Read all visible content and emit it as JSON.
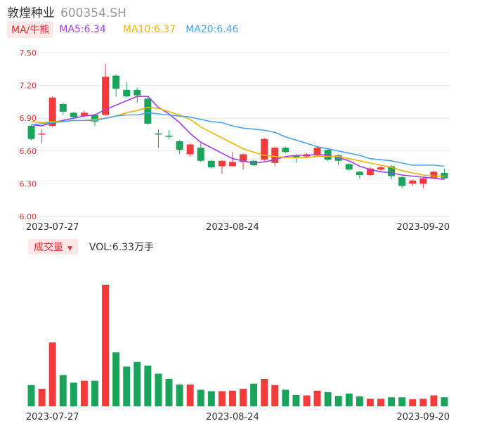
{
  "header": {
    "name": "敦煌种业",
    "code": "600354.SH"
  },
  "ma": {
    "label": "MA/牛熊",
    "ma5": "MA5:6.34",
    "ma10": "MA10:6.37",
    "ma20": "MA20:6.46"
  },
  "vol": {
    "label": "成交量",
    "arrow": "▼",
    "value": "VOL:6.33万手"
  },
  "colors": {
    "up": "#f23b3b",
    "down": "#1aa35a",
    "ma5": "#a23fe6",
    "ma10": "#f0b400",
    "ma20": "#4da3f0",
    "grid": "#e8e8e8"
  },
  "chart_data": [
    {
      "type": "candlestick",
      "ylim": [
        6.0,
        7.5
      ],
      "yticks": [
        "7.50",
        "7.20",
        "6.90",
        "6.60",
        "6.30",
        "6.00"
      ],
      "xticks": [
        "2023-07-27",
        "2023-08-24",
        "2023-09-20"
      ],
      "xtick_index": [
        2,
        19,
        37
      ],
      "candles": [
        {
          "o": 6.83,
          "c": 6.71,
          "h": 6.84,
          "l": 6.7
        },
        {
          "o": 6.75,
          "c": 6.76,
          "h": 6.8,
          "l": 6.67
        },
        {
          "o": 6.83,
          "c": 7.09,
          "h": 7.1,
          "l": 6.82
        },
        {
          "o": 7.03,
          "c": 6.96,
          "h": 7.04,
          "l": 6.93
        },
        {
          "o": 6.95,
          "c": 6.91,
          "h": 6.96,
          "l": 6.9
        },
        {
          "o": 6.92,
          "c": 6.95,
          "h": 6.97,
          "l": 6.91
        },
        {
          "o": 6.93,
          "c": 6.87,
          "h": 6.94,
          "l": 6.83
        },
        {
          "o": 6.93,
          "c": 7.28,
          "h": 7.4,
          "l": 6.92
        },
        {
          "o": 7.29,
          "c": 7.17,
          "h": 7.3,
          "l": 7.1
        },
        {
          "o": 7.16,
          "c": 7.1,
          "h": 7.23,
          "l": 7.09
        },
        {
          "o": 7.16,
          "c": 7.11,
          "h": 7.18,
          "l": 7.04
        },
        {
          "o": 7.08,
          "c": 6.85,
          "h": 7.1,
          "l": 6.84
        },
        {
          "o": 6.76,
          "c": 6.75,
          "h": 6.8,
          "l": 6.63
        },
        {
          "o": 6.74,
          "c": 6.73,
          "h": 6.79,
          "l": 6.71
        },
        {
          "o": 6.69,
          "c": 6.61,
          "h": 6.7,
          "l": 6.57
        },
        {
          "o": 6.57,
          "c": 6.66,
          "h": 6.67,
          "l": 6.55
        },
        {
          "o": 6.63,
          "c": 6.51,
          "h": 6.67,
          "l": 6.5
        },
        {
          "o": 6.51,
          "c": 6.45,
          "h": 6.52,
          "l": 6.44
        },
        {
          "o": 6.46,
          "c": 6.51,
          "h": 6.52,
          "l": 6.39
        },
        {
          "o": 6.46,
          "c": 6.5,
          "h": 6.59,
          "l": 6.46
        },
        {
          "o": 6.5,
          "c": 6.57,
          "h": 6.58,
          "l": 6.43
        },
        {
          "o": 6.51,
          "c": 6.47,
          "h": 6.52,
          "l": 6.46
        },
        {
          "o": 6.52,
          "c": 6.71,
          "h": 6.72,
          "l": 6.51
        },
        {
          "o": 6.49,
          "c": 6.63,
          "h": 6.64,
          "l": 6.46
        },
        {
          "o": 6.63,
          "c": 6.59,
          "h": 6.64,
          "l": 6.58
        },
        {
          "o": 6.56,
          "c": 6.54,
          "h": 6.57,
          "l": 6.49
        },
        {
          "o": 6.55,
          "c": 6.57,
          "h": 6.58,
          "l": 6.54
        },
        {
          "o": 6.56,
          "c": 6.63,
          "h": 6.64,
          "l": 6.55
        },
        {
          "o": 6.61,
          "c": 6.52,
          "h": 6.62,
          "l": 6.51
        },
        {
          "o": 6.56,
          "c": 6.51,
          "h": 6.57,
          "l": 6.47
        },
        {
          "o": 6.48,
          "c": 6.43,
          "h": 6.49,
          "l": 6.42
        },
        {
          "o": 6.41,
          "c": 6.38,
          "h": 6.42,
          "l": 6.35
        },
        {
          "o": 6.38,
          "c": 6.44,
          "h": 6.45,
          "l": 6.37
        },
        {
          "o": 6.43,
          "c": 6.45,
          "h": 6.46,
          "l": 6.42
        },
        {
          "o": 6.46,
          "c": 6.37,
          "h": 6.47,
          "l": 6.34
        },
        {
          "o": 6.36,
          "c": 6.28,
          "h": 6.37,
          "l": 6.26
        },
        {
          "o": 6.3,
          "c": 6.33,
          "h": 6.34,
          "l": 6.28
        },
        {
          "o": 6.3,
          "c": 6.35,
          "h": 6.36,
          "l": 6.26
        },
        {
          "o": 6.35,
          "c": 6.41,
          "h": 6.42,
          "l": 6.34
        },
        {
          "o": 6.4,
          "c": 6.35,
          "h": 6.44,
          "l": 6.34
        }
      ],
      "ma5": [
        6.84,
        6.83,
        6.86,
        6.88,
        6.9,
        6.92,
        6.93,
        6.98,
        7.02,
        7.06,
        7.1,
        7.1,
        7.0,
        6.94,
        6.86,
        6.76,
        6.68,
        6.63,
        6.58,
        6.53,
        6.51,
        6.49,
        6.5,
        6.52,
        6.55,
        6.56,
        6.56,
        6.57,
        6.56,
        6.54,
        6.51,
        6.46,
        6.43,
        6.41,
        6.4,
        6.38,
        6.37,
        6.36,
        6.35,
        6.34
      ],
      "ma10": [
        6.87,
        6.86,
        6.87,
        6.87,
        6.88,
        6.88,
        6.89,
        6.9,
        6.92,
        6.95,
        6.97,
        7.0,
        6.99,
        6.96,
        6.93,
        6.89,
        6.82,
        6.77,
        6.72,
        6.67,
        6.62,
        6.59,
        6.56,
        6.55,
        6.54,
        6.54,
        6.54,
        6.55,
        6.55,
        6.55,
        6.53,
        6.51,
        6.49,
        6.47,
        6.45,
        6.42,
        6.4,
        6.38,
        6.37,
        6.37
      ],
      "ma20": [
        6.84,
        6.85,
        6.86,
        6.87,
        6.88,
        6.88,
        6.88,
        6.9,
        6.92,
        6.93,
        6.93,
        6.95,
        6.94,
        6.93,
        6.92,
        6.91,
        6.89,
        6.87,
        6.86,
        6.83,
        6.81,
        6.8,
        6.79,
        6.77,
        6.73,
        6.7,
        6.67,
        6.64,
        6.62,
        6.6,
        6.58,
        6.56,
        6.53,
        6.52,
        6.51,
        6.49,
        6.47,
        6.47,
        6.47,
        6.46
      ]
    },
    {
      "type": "bar",
      "label": "成交量",
      "volumes": [
        4.5,
        3.7,
        13.5,
        6.6,
        5.0,
        5.4,
        5.4,
        25.7,
        11.4,
        8.4,
        9.4,
        8.6,
        6.9,
        5.8,
        4.6,
        4.6,
        3.5,
        3.2,
        3.2,
        3.3,
        3.7,
        4.8,
        5.8,
        4.5,
        3.5,
        2.4,
        2.3,
        3.3,
        3.0,
        2.2,
        2.7,
        2.1,
        1.6,
        1.6,
        1.9,
        1.9,
        1.5,
        1.6,
        2.3,
        1.9
      ]
    }
  ]
}
